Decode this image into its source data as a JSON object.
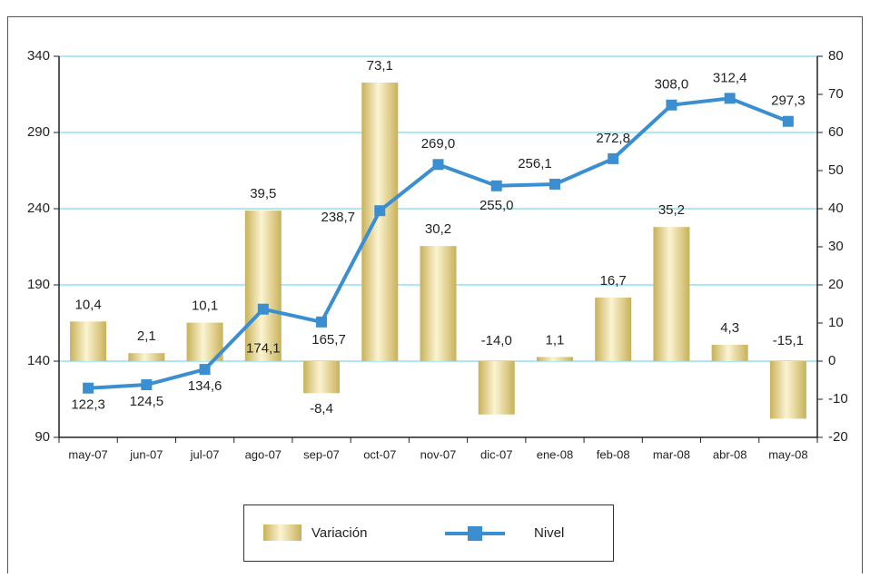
{
  "chart_data": {
    "type": "bar-line",
    "categories": [
      "may-07",
      "jun-07",
      "jul-07",
      "ago-07",
      "sep-07",
      "oct-07",
      "nov-07",
      "dic-07",
      "ene-08",
      "feb-08",
      "mar-08",
      "abr-08",
      "may-08"
    ],
    "series": [
      {
        "name": "Variación",
        "type": "bar",
        "axis": "y2",
        "color": "#e0cf80",
        "values": [
          10.4,
          2.1,
          10.1,
          39.5,
          -8.4,
          73.1,
          30.2,
          -14.0,
          1.1,
          16.7,
          35.2,
          4.3,
          -15.1
        ],
        "value_labels": [
          "10,4",
          "2,1",
          "10,1",
          "39,5",
          "-8,4",
          "73,1",
          "30,2",
          "-14,0",
          "1,1",
          "16,7",
          "35,2",
          "4,3",
          "-15,1"
        ]
      },
      {
        "name": "Nivel",
        "type": "line",
        "color": "#3b8fd0",
        "values": [
          122.3,
          124.5,
          134.6,
          174.1,
          165.7,
          238.7,
          269.0,
          255.0,
          256.1,
          272.8,
          308.0,
          312.4,
          297.3
        ],
        "value_labels": [
          "122,3",
          "124,5",
          "134,6",
          "174,1",
          "165,7",
          "238,7",
          "269,0",
          "255,0",
          "256,1",
          "272,8",
          "308,0",
          "312,4",
          "297,3"
        ]
      }
    ],
    "ylim": [
      90,
      340
    ],
    "yticks": [
      90,
      140,
      190,
      240,
      290,
      340
    ],
    "y2lim": [
      -20,
      80
    ],
    "y2ticks": [
      -20,
      -10,
      0,
      10,
      20,
      30,
      40,
      50,
      60,
      70,
      80
    ],
    "grid": true
  }
}
